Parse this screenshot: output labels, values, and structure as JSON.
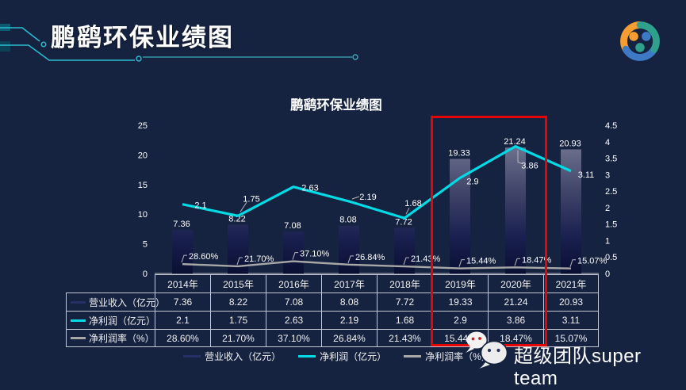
{
  "page": {
    "background": "#152240",
    "accent_teal": "#2bbcd0"
  },
  "header": {
    "title": "鹏鹞环保业绩图"
  },
  "logo": {
    "orange": "#f59d31",
    "blue": "#3e79c6",
    "teal": "#2fa08c"
  },
  "brand": {
    "name": "超级团队super team"
  },
  "chart_data": {
    "type": "bar",
    "subtype": "combo-bar-line",
    "title": "鹏鹞环保业绩图",
    "categories": [
      "2014年",
      "2015年",
      "2016年",
      "2017年",
      "2018年",
      "2019年",
      "2020年",
      "2021年"
    ],
    "series": [
      {
        "name": "营业收入（亿元）",
        "type": "bar",
        "axis": "left",
        "values": [
          7.36,
          8.22,
          7.08,
          8.08,
          7.72,
          19.33,
          21.24,
          20.93
        ],
        "labels": [
          "7.36",
          "8.22",
          "7.08",
          "8.08",
          "7.72",
          "19.33",
          "21.24",
          "20.93"
        ],
        "color": "#282e66",
        "gradient_top": "#82869f",
        "gradient_bottom": "#0a0f33"
      },
      {
        "name": "净利润（亿元）",
        "type": "line",
        "axis": "right",
        "values": [
          2.1,
          1.75,
          2.63,
          2.19,
          1.68,
          2.9,
          3.86,
          3.11
        ],
        "labels": [
          "2.1",
          "1.75",
          "2.63",
          "2.19",
          "1.68",
          "2.9",
          "3.86",
          "3.11"
        ],
        "color": "#00dce6"
      },
      {
        "name": "净利润率（%）",
        "type": "line",
        "axis": "right-percent",
        "values": [
          28.6,
          21.7,
          37.1,
          26.84,
          21.43,
          15.44,
          18.47,
          15.07
        ],
        "labels": [
          "28.60%",
          "21.70%",
          "37.10%",
          "26.84%",
          "21.43%",
          "15.44%",
          "18.47%",
          "15.07%"
        ],
        "color": "#a8a8a8"
      }
    ],
    "left_axis": {
      "min": 0,
      "max": 25,
      "ticks": [
        "0",
        "5",
        "10",
        "15",
        "20",
        "25"
      ]
    },
    "right_axis": {
      "min": 0,
      "max": 4.5,
      "ticks": [
        "0",
        "0.5",
        "1",
        "1.5",
        "2",
        "2.5",
        "3",
        "3.5",
        "4",
        "4.5"
      ]
    },
    "grid": false,
    "legend_position": "bottom",
    "legend": [
      "营业收入（亿元）",
      "净利润（亿元）",
      "净利润率（%）"
    ],
    "highlight": {
      "categories": [
        "2019年",
        "2020年"
      ],
      "color": "#e60505"
    }
  },
  "table": {
    "corner": "",
    "column_headers": [
      "2014年",
      "2015年",
      "2016年",
      "2017年",
      "2018年",
      "2019年",
      "2020年",
      "2021年"
    ],
    "rows": [
      {
        "label": "营业收入（亿元）",
        "values": [
          "7.36",
          "8.22",
          "7.08",
          "8.08",
          "7.72",
          "19.33",
          "21.24",
          "20.93"
        ]
      },
      {
        "label": "净利润（亿元）",
        "values": [
          "2.1",
          "1.75",
          "2.63",
          "2.19",
          "1.68",
          "2.9",
          "3.86",
          "3.11"
        ]
      },
      {
        "label": "净利润率（%）",
        "values": [
          "28.60%",
          "21.70%",
          "37.10%",
          "26.84%",
          "21.43%",
          "15.44%",
          "18.47%",
          "15.07%"
        ]
      }
    ]
  }
}
